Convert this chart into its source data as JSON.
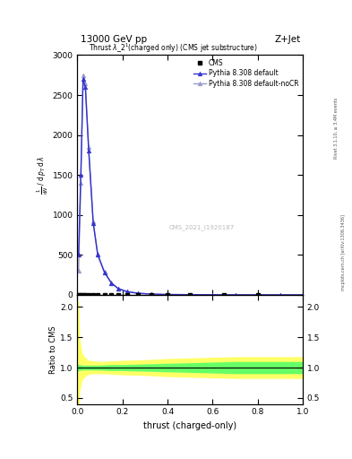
{
  "title_top": "13000 GeV pp",
  "title_top_right": "Z+Jet",
  "plot_title": "Thrust $\\lambda$_2$^1$(charged only) (CMS jet substructure)",
  "xlabel": "thrust (charged-only)",
  "ylabel_ratio": "Ratio to CMS",
  "right_label_top": "Rivet 3.1.10, ≥ 3.4M events",
  "right_label_bottom": "mcplots.cern.ch [arXiv:1306.3436]",
  "watermark": "CMS_2021_I1920187",
  "legend_cms": "CMS",
  "legend_py1": "Pythia 8.308 default",
  "legend_py2": "Pythia 8.308 default-noCR",
  "cms_color": "black",
  "py1_color": "#3333cc",
  "py2_color": "#9999cc",
  "green_band_color": "#66ff66",
  "yellow_band_color": "#ffff66",
  "xlim": [
    0.0,
    1.0
  ],
  "ylim_main": [
    0,
    3000
  ],
  "ylim_ratio": [
    0.4,
    2.2
  ],
  "thrust_x": [
    0.005,
    0.015,
    0.025,
    0.035,
    0.05,
    0.07,
    0.09,
    0.12,
    0.15,
    0.18,
    0.22,
    0.27,
    0.33,
    0.4,
    0.5,
    0.6,
    0.7,
    0.8,
    0.9,
    1.0
  ],
  "py1_y": [
    500,
    1500,
    2700,
    2600,
    1800,
    900,
    500,
    280,
    150,
    80,
    40,
    20,
    10,
    5,
    3,
    2,
    1,
    1,
    0.5,
    0.2
  ],
  "py2_y": [
    300,
    1400,
    2750,
    2650,
    1850,
    920,
    510,
    290,
    155,
    82,
    42,
    21,
    11,
    5,
    3,
    2,
    1,
    1,
    0.5,
    0.2
  ],
  "cms_x": [
    0.005,
    0.015,
    0.025,
    0.035,
    0.05,
    0.07,
    0.09,
    0.12,
    0.15,
    0.18,
    0.22,
    0.27,
    0.33,
    0.4,
    0.5,
    0.65,
    0.8
  ],
  "cms_y": [
    2,
    2,
    2,
    2,
    2,
    2,
    2,
    2,
    2,
    2,
    2,
    2,
    2,
    2,
    2,
    2,
    2
  ],
  "ratio_x": [
    0.0,
    0.005,
    0.01,
    0.02,
    0.03,
    0.05,
    0.07,
    0.1,
    0.15,
    0.2,
    0.3,
    0.4,
    0.5,
    0.6,
    0.7,
    0.8,
    0.9,
    1.0
  ],
  "ratio_green_upper": [
    1.05,
    1.05,
    1.05,
    1.04,
    1.04,
    1.04,
    1.04,
    1.04,
    1.05,
    1.05,
    1.06,
    1.07,
    1.08,
    1.09,
    1.1,
    1.1,
    1.1,
    1.1
  ],
  "ratio_green_lower": [
    0.95,
    0.95,
    0.95,
    0.96,
    0.96,
    0.96,
    0.96,
    0.96,
    0.95,
    0.95,
    0.94,
    0.93,
    0.92,
    0.91,
    0.9,
    0.9,
    0.9,
    0.9
  ],
  "ratio_yellow_upper": [
    2.1,
    2.1,
    1.5,
    1.25,
    1.18,
    1.12,
    1.11,
    1.1,
    1.11,
    1.12,
    1.13,
    1.15,
    1.16,
    1.17,
    1.18,
    1.18,
    1.18,
    1.18
  ],
  "ratio_yellow_lower": [
    0.25,
    0.25,
    0.6,
    0.78,
    0.84,
    0.89,
    0.9,
    0.9,
    0.89,
    0.88,
    0.87,
    0.85,
    0.84,
    0.83,
    0.82,
    0.82,
    0.82,
    0.82
  ]
}
